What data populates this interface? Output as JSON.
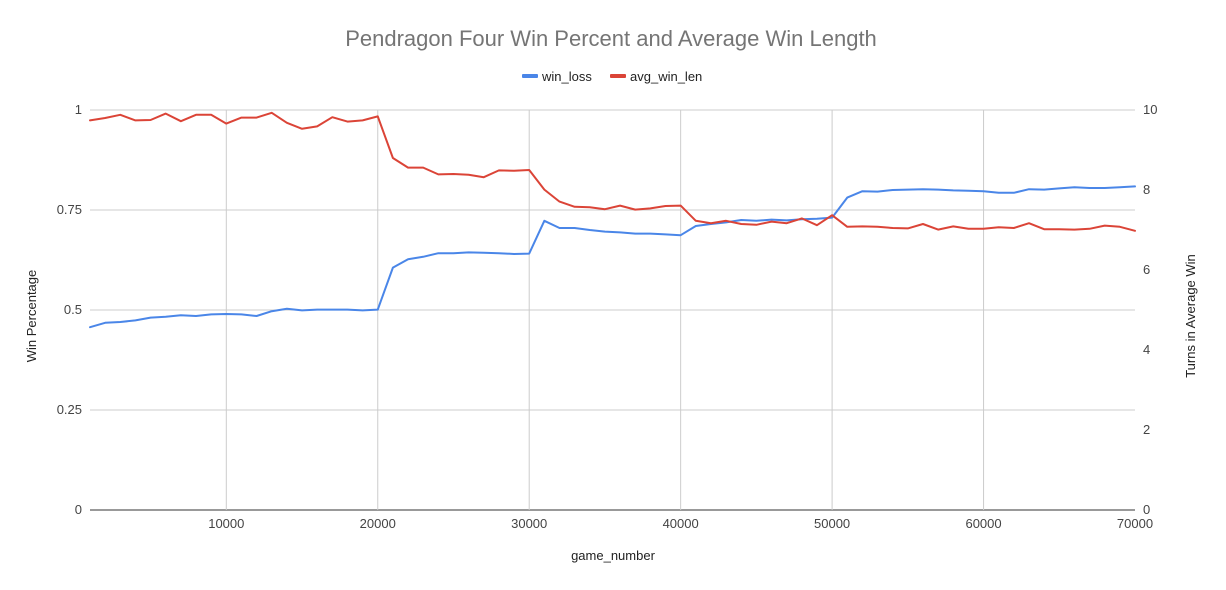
{
  "chart_data": {
    "type": "line",
    "title": "Pendragon Four Win Percent and Average Win Length",
    "xlabel": "game_number",
    "ylabel": "Win Percentage",
    "y2label": "Turns in Average Win",
    "xlim": [
      1000,
      70000
    ],
    "ylim": [
      0,
      1
    ],
    "y2lim": [
      0,
      10
    ],
    "x_ticks": [
      10000,
      20000,
      30000,
      40000,
      50000,
      60000,
      70000
    ],
    "x_tick_labels": [
      "10000",
      "20000",
      "30000",
      "40000",
      "50000",
      "60000",
      "70000"
    ],
    "y_ticks": [
      0,
      0.25,
      0.5,
      0.75,
      1
    ],
    "y_tick_labels": [
      "0",
      "0.25",
      "0.5",
      "0.75",
      "1"
    ],
    "y2_ticks": [
      0,
      2,
      4,
      6,
      8,
      10
    ],
    "y2_tick_labels": [
      "0",
      "2",
      "4",
      "6",
      "8",
      "10"
    ],
    "grid": true,
    "legend_position": "top-center",
    "x": [
      1000,
      2000,
      3000,
      4000,
      5000,
      6000,
      7000,
      8000,
      9000,
      10000,
      11000,
      12000,
      13000,
      14000,
      15000,
      16000,
      17000,
      18000,
      19000,
      20000,
      21000,
      22000,
      23000,
      24000,
      25000,
      26000,
      27000,
      28000,
      29000,
      30000,
      31000,
      32000,
      33000,
      34000,
      35000,
      36000,
      37000,
      38000,
      39000,
      40000,
      41000,
      42000,
      43000,
      44000,
      45000,
      46000,
      47000,
      48000,
      49000,
      50000,
      51000,
      52000,
      53000,
      54000,
      55000,
      56000,
      57000,
      58000,
      59000,
      60000,
      61000,
      62000,
      63000,
      64000,
      65000,
      66000,
      67000,
      68000,
      69000,
      70000
    ],
    "series": [
      {
        "name": "win_loss",
        "axis": "left",
        "color": "#4a86e8",
        "values": [
          0.457,
          0.468,
          0.47,
          0.474,
          0.481,
          0.483,
          0.487,
          0.485,
          0.489,
          0.49,
          0.489,
          0.485,
          0.497,
          0.503,
          0.499,
          0.501,
          0.501,
          0.501,
          0.499,
          0.501,
          0.606,
          0.627,
          0.633,
          0.642,
          0.642,
          0.644,
          0.643,
          0.642,
          0.64,
          0.641,
          0.723,
          0.705,
          0.705,
          0.7,
          0.696,
          0.694,
          0.691,
          0.691,
          0.689,
          0.687,
          0.71,
          0.715,
          0.719,
          0.725,
          0.723,
          0.726,
          0.724,
          0.727,
          0.728,
          0.731,
          0.781,
          0.797,
          0.796,
          0.8,
          0.801,
          0.802,
          0.801,
          0.799,
          0.798,
          0.797,
          0.793,
          0.793,
          0.802,
          0.801,
          0.804,
          0.807,
          0.805,
          0.805,
          0.807,
          0.809
        ]
      },
      {
        "name": "avg_win_len",
        "axis": "right",
        "color": "#db4437",
        "values": [
          9.74,
          9.8,
          9.88,
          9.74,
          9.75,
          9.91,
          9.72,
          9.88,
          9.88,
          9.66,
          9.81,
          9.81,
          9.93,
          9.68,
          9.53,
          9.59,
          9.82,
          9.71,
          9.74,
          9.84,
          8.8,
          8.56,
          8.56,
          8.39,
          8.4,
          8.38,
          8.32,
          8.49,
          8.48,
          8.5,
          8.01,
          7.71,
          7.58,
          7.57,
          7.52,
          7.61,
          7.51,
          7.54,
          7.6,
          7.61,
          7.23,
          7.17,
          7.23,
          7.15,
          7.13,
          7.21,
          7.17,
          7.29,
          7.12,
          7.37,
          7.08,
          7.09,
          7.08,
          7.05,
          7.04,
          7.15,
          7.01,
          7.09,
          7.03,
          7.03,
          7.07,
          7.05,
          7.17,
          7.02,
          7.02,
          7.01,
          7.03,
          7.11,
          7.08,
          6.98
        ]
      }
    ]
  }
}
